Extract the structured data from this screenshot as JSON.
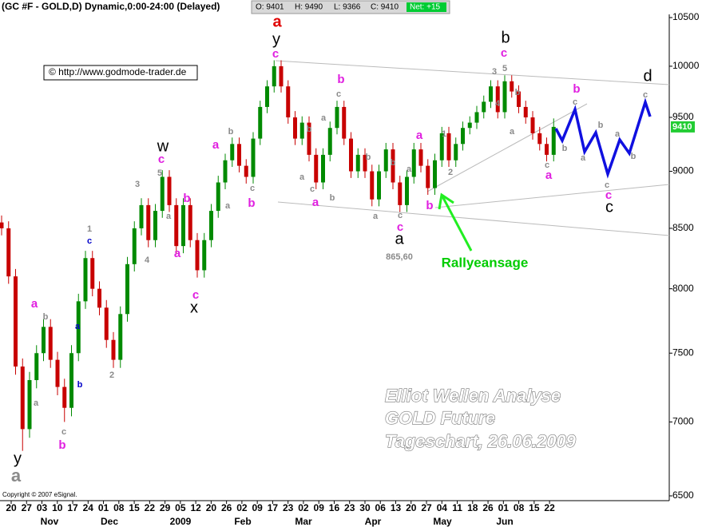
{
  "header": {
    "title": "(GC #F - GOLD,D) Dynamic,0:00-24:00 (Delayed)",
    "quote": [
      "O: 9401",
      "H: 9490",
      "L: 9366",
      "C: 9410",
      "Net: +15"
    ],
    "link": "© http://www.godmode-trader.de"
  },
  "chart_data": {
    "type": "candlestick",
    "log": true,
    "up_color": "#008a00",
    "down_color": "#c80000",
    "ylim": [
      6500,
      10500
    ],
    "yticks": [
      6500,
      7000,
      7500,
      8000,
      8500,
      9000,
      9500,
      10000,
      10500
    ],
    "x_labels": [
      "20",
      "27",
      "03",
      "10",
      "17",
      "24",
      "01",
      "08",
      "15",
      "22",
      "29",
      "05",
      "12",
      "20",
      "26",
      "02",
      "09",
      "17",
      "23",
      "02",
      "09",
      "16",
      "23",
      "30",
      "06",
      "13",
      "20",
      "27",
      "04",
      "11",
      "18",
      "26",
      "01",
      "08",
      "15",
      "22"
    ],
    "month_labels": [
      "Nov",
      "Dec",
      "2009",
      "Feb",
      "Mar",
      "Apr",
      "May",
      "Jun"
    ],
    "candles": [
      [
        8550,
        8610,
        8440,
        8500
      ],
      [
        8500,
        8560,
        8040,
        8100
      ],
      [
        8100,
        8160,
        7340,
        7400
      ],
      [
        7400,
        7460,
        6800,
        6950
      ],
      [
        6950,
        7360,
        6890,
        7300
      ],
      [
        7300,
        7560,
        7240,
        7500
      ],
      [
        7500,
        7760,
        7440,
        7700
      ],
      [
        7700,
        7760,
        7390,
        7450
      ],
      [
        7450,
        7510,
        7190,
        7250
      ],
      [
        7250,
        7310,
        7000,
        7100
      ],
      [
        7100,
        7560,
        7040,
        7500
      ],
      [
        7500,
        7960,
        7440,
        7900
      ],
      [
        7900,
        8310,
        7840,
        8250
      ],
      [
        8250,
        8310,
        7940,
        8000
      ],
      [
        8000,
        8060,
        7790,
        7850
      ],
      [
        7850,
        7910,
        7540,
        7600
      ],
      [
        7600,
        7660,
        7390,
        7450
      ],
      [
        7450,
        7860,
        7390,
        7800
      ],
      [
        7800,
        8260,
        7740,
        8200
      ],
      [
        8200,
        8560,
        8140,
        8500
      ],
      [
        8500,
        8760,
        8440,
        8700
      ],
      [
        8700,
        8760,
        8340,
        8400
      ],
      [
        8400,
        8710,
        8340,
        8650
      ],
      [
        8650,
        9010,
        8590,
        8950
      ],
      [
        8950,
        9010,
        8640,
        8700
      ],
      [
        8700,
        8760,
        8290,
        8350
      ],
      [
        8350,
        8760,
        8290,
        8700
      ],
      [
        8700,
        8760,
        8340,
        8400
      ],
      [
        8400,
        8460,
        8090,
        8150
      ],
      [
        8150,
        8460,
        8090,
        8400
      ],
      [
        8400,
        8710,
        8340,
        8650
      ],
      [
        8650,
        8960,
        8590,
        8900
      ],
      [
        8900,
        9160,
        8840,
        9100
      ],
      [
        9100,
        9310,
        9040,
        9250
      ],
      [
        9250,
        9310,
        8990,
        9050
      ],
      [
        9050,
        9110,
        8890,
        8950
      ],
      [
        8950,
        9360,
        8890,
        9300
      ],
      [
        9300,
        9660,
        9240,
        9600
      ],
      [
        9600,
        9860,
        9540,
        9800
      ],
      [
        9800,
        10060,
        9740,
        10000
      ],
      [
        10000,
        10060,
        9740,
        9800
      ],
      [
        9800,
        9860,
        9440,
        9500
      ],
      [
        9500,
        9560,
        9240,
        9300
      ],
      [
        9300,
        9510,
        9240,
        9450
      ],
      [
        9450,
        9510,
        9090,
        9150
      ],
      [
        9150,
        9210,
        8840,
        8900
      ],
      [
        8900,
        9210,
        8840,
        9150
      ],
      [
        9150,
        9460,
        9090,
        9400
      ],
      [
        9400,
        9660,
        9340,
        9600
      ],
      [
        9600,
        9660,
        9240,
        9300
      ],
      [
        9300,
        9360,
        8940,
        9000
      ],
      [
        9000,
        9210,
        8940,
        9150
      ],
      [
        9150,
        9210,
        8940,
        9000
      ],
      [
        9000,
        9060,
        8690,
        8750
      ],
      [
        8750,
        9060,
        8690,
        9000
      ],
      [
        9000,
        9260,
        8940,
        9200
      ],
      [
        9200,
        9260,
        8840,
        8900
      ],
      [
        8900,
        8960,
        8640,
        8700
      ],
      [
        8700,
        9010,
        8640,
        8950
      ],
      [
        8950,
        9260,
        8890,
        9200
      ],
      [
        9200,
        9260,
        8990,
        9050
      ],
      [
        9050,
        9110,
        8790,
        8850
      ],
      [
        8850,
        9160,
        8790,
        9100
      ],
      [
        9100,
        9410,
        9040,
        9350
      ],
      [
        9350,
        9410,
        9040,
        9100
      ],
      [
        9100,
        9310,
        9040,
        9250
      ],
      [
        9250,
        9460,
        9190,
        9400
      ],
      [
        9400,
        9510,
        9340,
        9450
      ],
      [
        9450,
        9610,
        9390,
        9550
      ],
      [
        9550,
        9710,
        9490,
        9650
      ],
      [
        9650,
        9860,
        9590,
        9800
      ],
      [
        9800,
        9860,
        9490,
        9550
      ],
      [
        9550,
        9910,
        9490,
        9850
      ],
      [
        9850,
        9910,
        9690,
        9750
      ],
      [
        9750,
        9810,
        9540,
        9600
      ],
      [
        9600,
        9660,
        9440,
        9500
      ],
      [
        9500,
        9560,
        9290,
        9350
      ],
      [
        9350,
        9410,
        9190,
        9250
      ],
      [
        9250,
        9310,
        9090,
        9150
      ],
      [
        9150,
        9490,
        9090,
        9410
      ]
    ],
    "annotations": [
      "y",
      "a",
      "a",
      "b",
      "a",
      "c",
      "b",
      "1",
      "c",
      "a",
      "b",
      "2",
      "3",
      "4",
      "w",
      "c",
      "5",
      "b",
      "a",
      "a",
      "c",
      "x",
      "a",
      "b",
      "a",
      "c",
      "b",
      "a",
      "y",
      "c",
      "b",
      "c",
      "a",
      "b",
      "a",
      "c",
      "a",
      "b",
      "b",
      "a",
      "b",
      "c",
      "c",
      "a",
      "865,60",
      "a",
      "1",
      "a",
      "b",
      "2",
      "3",
      "b",
      "c",
      "5",
      "4",
      "b",
      "a",
      "c",
      "a",
      "b",
      "b",
      "c",
      "a",
      "b",
      "c",
      "c",
      "c",
      "a",
      "b",
      "c",
      "d",
      "Rallyeansage"
    ],
    "overlay_text": [
      "Elliot Wellen Analyse",
      "GOLD Future",
      "Tageschart, 26.06.2009"
    ],
    "copyright": "Copyright © 2007 eSignal."
  }
}
